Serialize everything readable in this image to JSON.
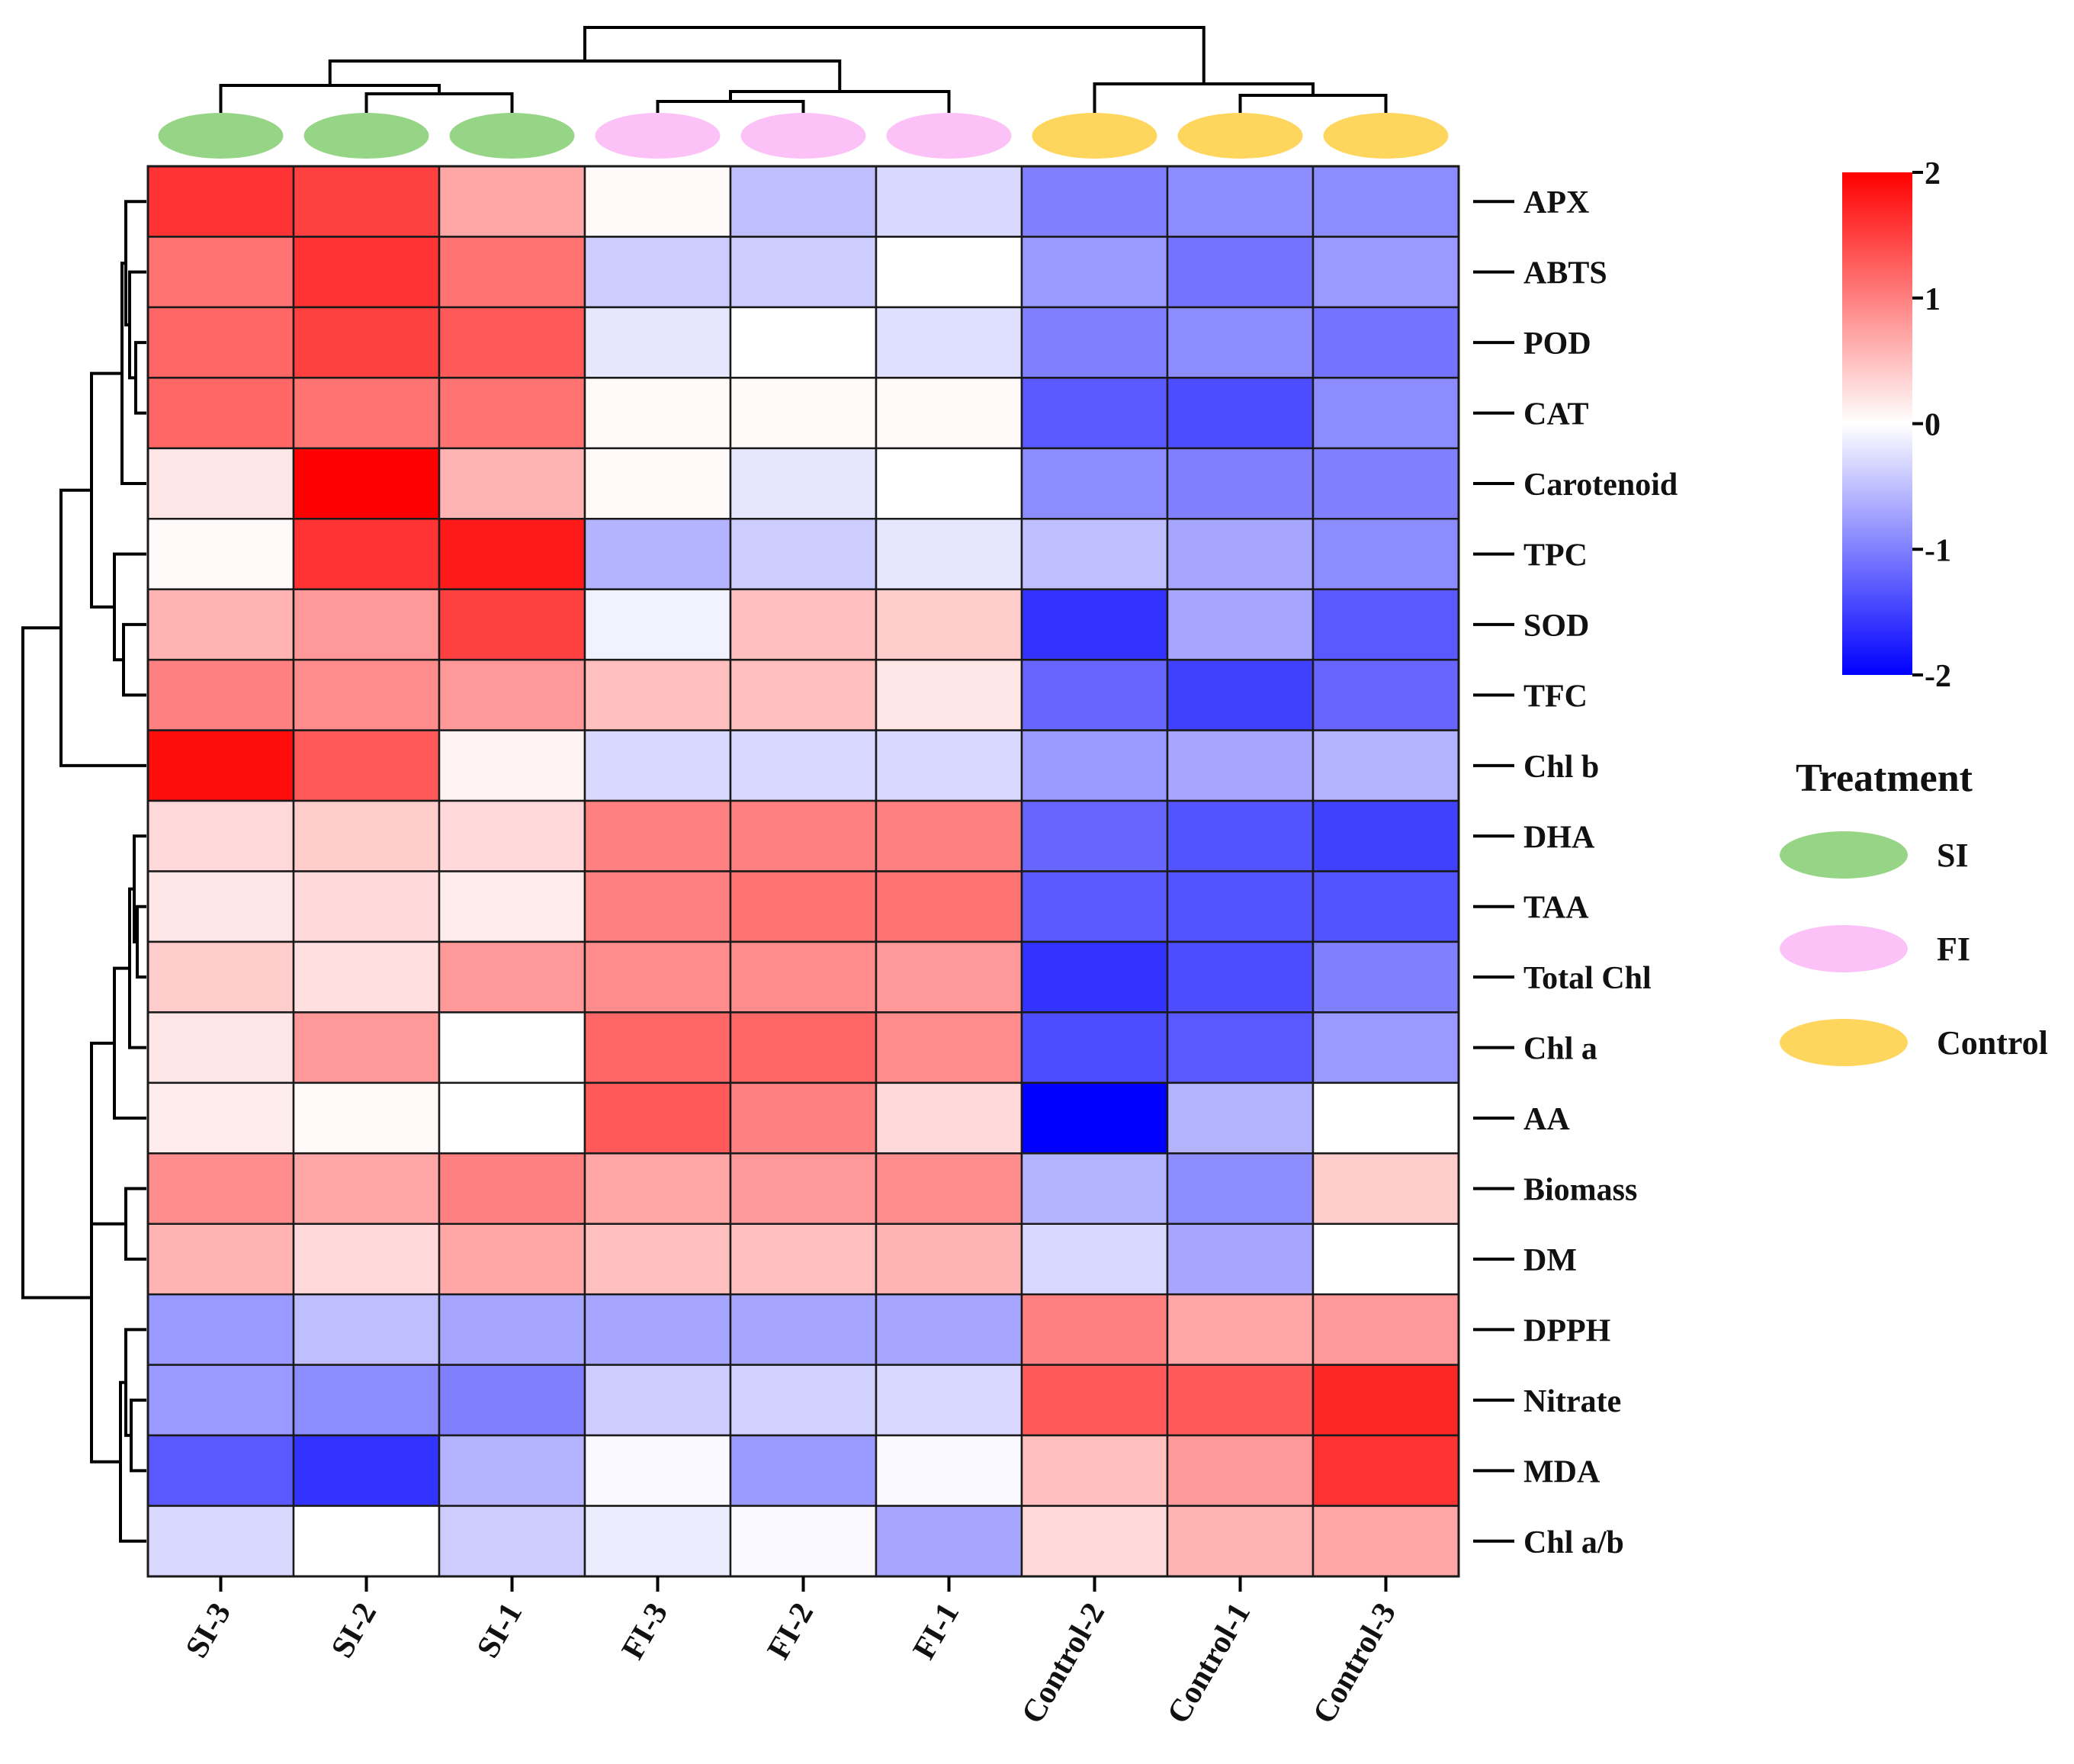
{
  "chart_data": {
    "type": "heatmap",
    "title": "",
    "columns": [
      "SI-3",
      "SI-2",
      "SI-1",
      "FI-3",
      "FI-2",
      "FI-1",
      "Control-2",
      "Control-1",
      "Control-3"
    ],
    "column_groups": [
      "SI",
      "SI",
      "SI",
      "FI",
      "FI",
      "FI",
      "Control",
      "Control",
      "Control"
    ],
    "rows": [
      "APX",
      "ABTS",
      "POD",
      "CAT",
      "Carotenoid",
      "TPC",
      "SOD",
      "TFC",
      "Chl b",
      "DHA",
      "TAA",
      "Total Chl",
      "Chl a",
      "AA",
      "Biomass",
      "DM",
      "DPPH",
      "Nitrate",
      "MDA",
      "Chl a/b"
    ],
    "values": [
      [
        1.6,
        1.5,
        0.7,
        0.05,
        -0.5,
        -0.3,
        -1.0,
        -0.9,
        -0.9
      ],
      [
        1.1,
        1.6,
        1.1,
        -0.4,
        -0.4,
        0.0,
        -0.8,
        -1.1,
        -0.8
      ],
      [
        1.2,
        1.5,
        1.3,
        -0.2,
        0.0,
        -0.25,
        -1.0,
        -0.9,
        -1.1
      ],
      [
        1.2,
        1.1,
        1.1,
        0.05,
        0.05,
        0.05,
        -1.3,
        -1.4,
        -0.9
      ],
      [
        0.2,
        2.0,
        0.6,
        0.05,
        -0.2,
        0.0,
        -0.9,
        -1.0,
        -1.0
      ],
      [
        0.05,
        1.6,
        1.8,
        -0.6,
        -0.4,
        -0.2,
        -0.5,
        -0.7,
        -0.9
      ],
      [
        0.6,
        0.8,
        1.5,
        -0.1,
        0.5,
        0.4,
        -1.6,
        -0.7,
        -1.3
      ],
      [
        1.0,
        0.9,
        0.8,
        0.5,
        0.5,
        0.2,
        -1.2,
        -1.5,
        -1.2
      ],
      [
        1.9,
        1.3,
        0.1,
        -0.3,
        -0.3,
        -0.3,
        -0.8,
        -0.7,
        -0.6
      ],
      [
        0.3,
        0.4,
        0.3,
        1.0,
        1.0,
        1.0,
        -1.2,
        -1.35,
        -1.5
      ],
      [
        0.2,
        0.3,
        0.15,
        1.0,
        1.1,
        1.1,
        -1.3,
        -1.35,
        -1.35
      ],
      [
        0.4,
        0.25,
        0.8,
        0.9,
        0.9,
        0.8,
        -1.6,
        -1.4,
        -1.0
      ],
      [
        0.2,
        0.8,
        0.0,
        1.2,
        1.2,
        0.9,
        -1.4,
        -1.3,
        -0.8
      ],
      [
        0.15,
        0.05,
        0.0,
        1.3,
        1.0,
        0.3,
        -2.0,
        -0.6,
        0.0
      ],
      [
        0.9,
        0.7,
        1.0,
        0.7,
        0.8,
        0.9,
        -0.6,
        -0.9,
        0.4
      ],
      [
        0.6,
        0.3,
        0.7,
        0.5,
        0.5,
        0.6,
        -0.3,
        -0.7,
        0.0
      ],
      [
        -0.8,
        -0.5,
        -0.7,
        -0.7,
        -0.7,
        -0.7,
        1.0,
        0.7,
        0.8
      ],
      [
        -0.8,
        -0.9,
        -1.0,
        -0.4,
        -0.35,
        -0.3,
        1.3,
        1.3,
        1.7
      ],
      [
        -1.3,
        -1.6,
        -0.6,
        -0.05,
        -0.8,
        -0.05,
        0.5,
        0.8,
        1.6
      ],
      [
        -0.3,
        0.0,
        -0.4,
        -0.15,
        -0.05,
        -0.7,
        0.3,
        0.6,
        0.7
      ]
    ],
    "color_scale": {
      "min": -2,
      "max": 2,
      "low_color": "#0000ff",
      "mid_color": "#ffffff",
      "high_color": "#ff0000",
      "tick_labels": [
        "2",
        "1",
        "0",
        "-1",
        "-2"
      ]
    },
    "legend": {
      "title": "Treatment",
      "placement": "right",
      "items": [
        {
          "label": "SI",
          "color": "#97d586"
        },
        {
          "label": "FI",
          "color": "#fcc2f8"
        },
        {
          "label": "Control",
          "color": "#fed65e"
        }
      ]
    }
  }
}
